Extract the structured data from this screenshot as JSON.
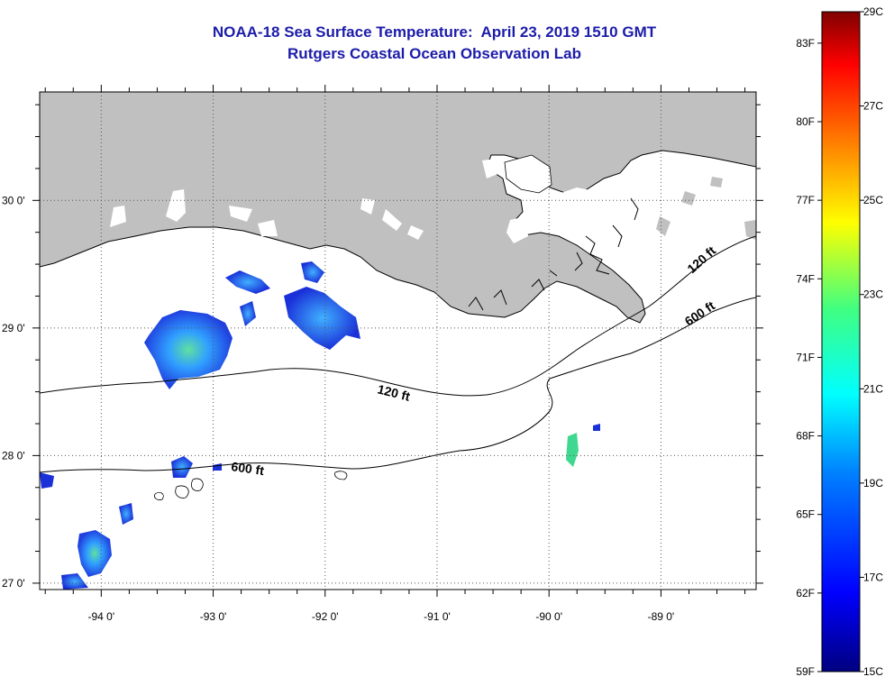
{
  "header": {
    "title_line1": "NOAA-18 Sea Surface Temperature:  April 23, 2019 1510 GMT",
    "title_line2": "Rutgers Coastal Ocean Observation Lab"
  },
  "map": {
    "lon_range": [
      -94.55,
      -88.15
    ],
    "lat_range": [
      26.95,
      30.85
    ],
    "lat_ticks": [
      {
        "value": 30,
        "label": "30 0'"
      },
      {
        "value": 29,
        "label": "29 0'"
      },
      {
        "value": 28,
        "label": "28 0'"
      },
      {
        "value": 27,
        "label": "27 0'"
      }
    ],
    "lon_ticks": [
      {
        "value": -94,
        "label": "-94 0'"
      },
      {
        "value": -93,
        "label": "-93 0'"
      },
      {
        "value": -92,
        "label": "-92 0'"
      },
      {
        "value": -91,
        "label": "-91 0'"
      },
      {
        "value": -90,
        "label": "-90 0'"
      },
      {
        "value": -89,
        "label": "-89 0'"
      }
    ],
    "contour_labels": {
      "c120_a": "120 ft",
      "c120_b": "120 ft",
      "c600_a": "600 ft",
      "c600_b": "600 ft"
    },
    "colors": {
      "land": "#c0c0c0",
      "water": "#ffffff",
      "grid": "#555555"
    }
  },
  "colorbar": {
    "f_labels": [
      "83F",
      "80F",
      "77F",
      "74F",
      "71F",
      "68F",
      "65F",
      "62F",
      "59F"
    ],
    "c_labels": [
      "29C",
      "27C",
      "25C",
      "23C",
      "21C",
      "19C",
      "17C",
      "15C"
    ],
    "f_range": [
      59,
      84.2
    ],
    "c_range": [
      15,
      29
    ]
  }
}
